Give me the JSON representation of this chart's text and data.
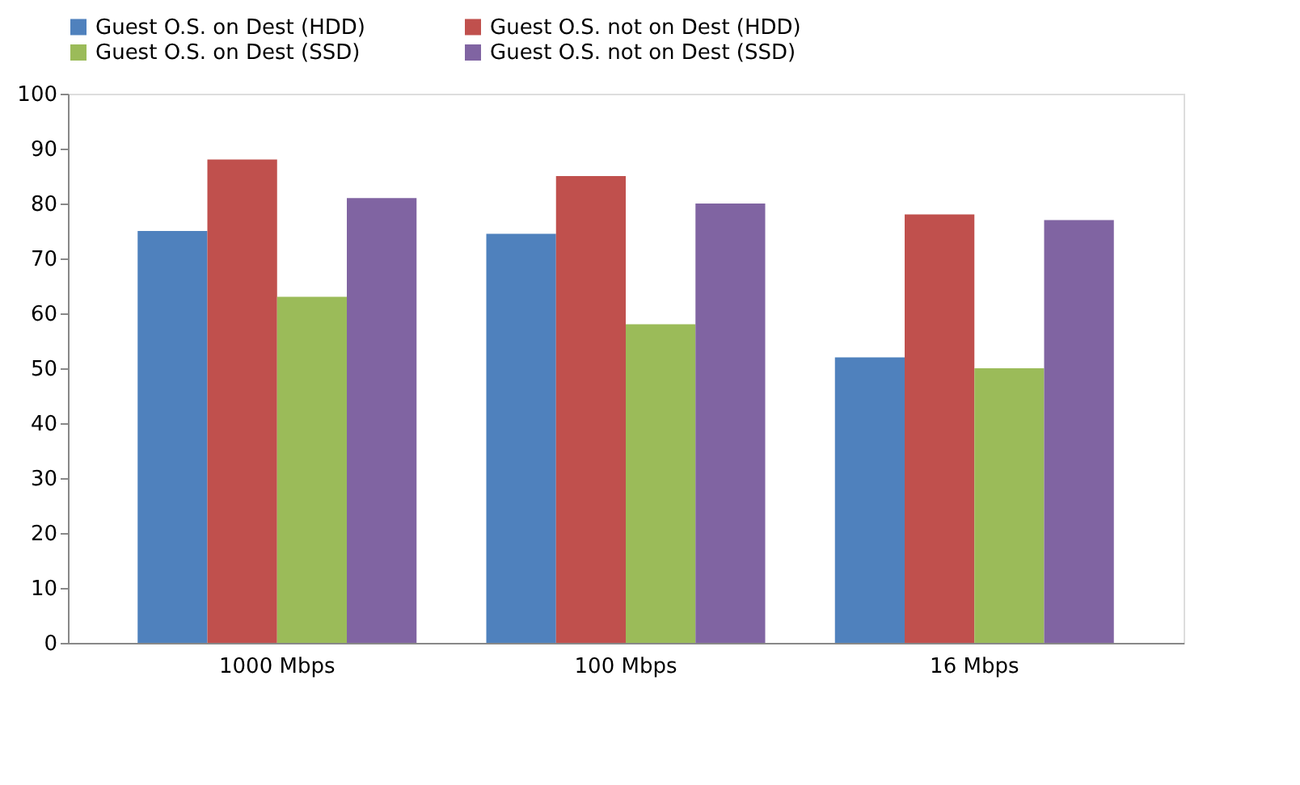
{
  "chart_data": {
    "type": "bar",
    "categories": [
      "1000 Mbps",
      "100 Mbps",
      "16 Mbps"
    ],
    "series": [
      {
        "name": "Guest O.S. on Dest (HDD)",
        "color": "#4f81bd",
        "values": [
          75,
          74.5,
          52
        ]
      },
      {
        "name": "Guest O.S. not on Dest (HDD)",
        "color": "#c0504d",
        "values": [
          88,
          85,
          78
        ]
      },
      {
        "name": "Guest O.S. on Dest (SSD)",
        "color": "#9bbb59",
        "values": [
          63,
          58,
          50
        ]
      },
      {
        "name": "Guest O.S. not on Dest (SSD)",
        "color": "#8064a2",
        "values": [
          81,
          80,
          77
        ]
      }
    ],
    "ylim": [
      0,
      100
    ],
    "yticks": [
      0,
      10,
      20,
      30,
      40,
      50,
      60,
      70,
      80,
      90,
      100
    ],
    "grid": false,
    "legend": "top"
  }
}
